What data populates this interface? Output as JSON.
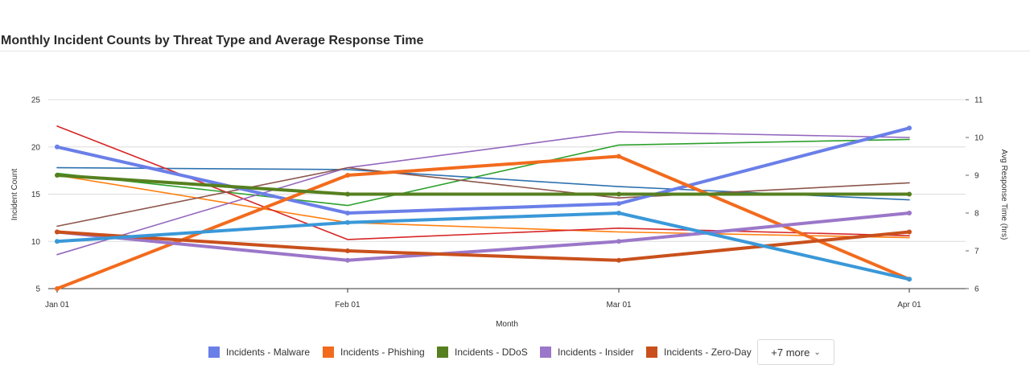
{
  "title": "Monthly Incident Counts by Threat Type and Average Response Time",
  "legend": {
    "more_label": "+7 more",
    "chevron_icon": "chevron-down-icon"
  },
  "chart_data": {
    "type": "line",
    "title": "Monthly Incident Counts by Threat Type and Average Response Time",
    "xlabel": "Month",
    "ylabel": "Incident Count",
    "y2label": "Avg Response Time (hrs)",
    "categories": [
      "Jan 01",
      "Feb 01",
      "Mar 01",
      "Apr 01"
    ],
    "ylim": [
      5,
      25
    ],
    "yticks": [
      5,
      10,
      15,
      20,
      25
    ],
    "y2lim": [
      6,
      11
    ],
    "y2ticks": [
      6,
      7,
      8,
      9,
      10,
      11
    ],
    "grid": true,
    "legend_position": "bottom",
    "series": [
      {
        "name": "Incidents - Malware",
        "axis": "left",
        "color": "#6a7fe8",
        "bold": true,
        "values": [
          20,
          13,
          14,
          22
        ]
      },
      {
        "name": "Incidents - Phishing",
        "axis": "left",
        "color": "#f26b1d",
        "bold": true,
        "values": [
          5,
          17,
          19,
          6
        ]
      },
      {
        "name": "Incidents - DDoS",
        "axis": "left",
        "color": "#56801f",
        "bold": true,
        "values": [
          17,
          15,
          15,
          15
        ]
      },
      {
        "name": "Incidents - Insider",
        "axis": "left",
        "color": "#9b77c9",
        "bold": true,
        "values": [
          11,
          8,
          10,
          13
        ]
      },
      {
        "name": "Incidents - Zero-Day",
        "axis": "left",
        "color": "#c9501c",
        "bold": true,
        "values": [
          11,
          9,
          8,
          11
        ]
      },
      {
        "axis": "left",
        "color": "#3a98d8",
        "bold": true,
        "values": [
          10,
          12,
          13,
          6
        ]
      },
      {
        "axis": "right",
        "color": "#2e72b0",
        "bold": false,
        "values": [
          9.2,
          9.15,
          8.7,
          8.35
        ]
      },
      {
        "axis": "right",
        "color": "#ff7f0e",
        "bold": false,
        "values": [
          9.0,
          7.75,
          7.5,
          7.35
        ]
      },
      {
        "axis": "right",
        "color": "#2ca02c",
        "bold": false,
        "values": [
          9.05,
          8.2,
          9.8,
          9.95
        ]
      },
      {
        "axis": "right",
        "color": "#d62728",
        "bold": false,
        "values": [
          10.3,
          7.3,
          7.6,
          7.4
        ]
      },
      {
        "axis": "right",
        "color": "#9467bd",
        "bold": false,
        "values": [
          6.9,
          9.2,
          10.15,
          10.0
        ]
      },
      {
        "axis": "right",
        "color": "#8c564b",
        "bold": false,
        "values": [
          7.65,
          9.2,
          8.4,
          8.8
        ]
      }
    ]
  }
}
